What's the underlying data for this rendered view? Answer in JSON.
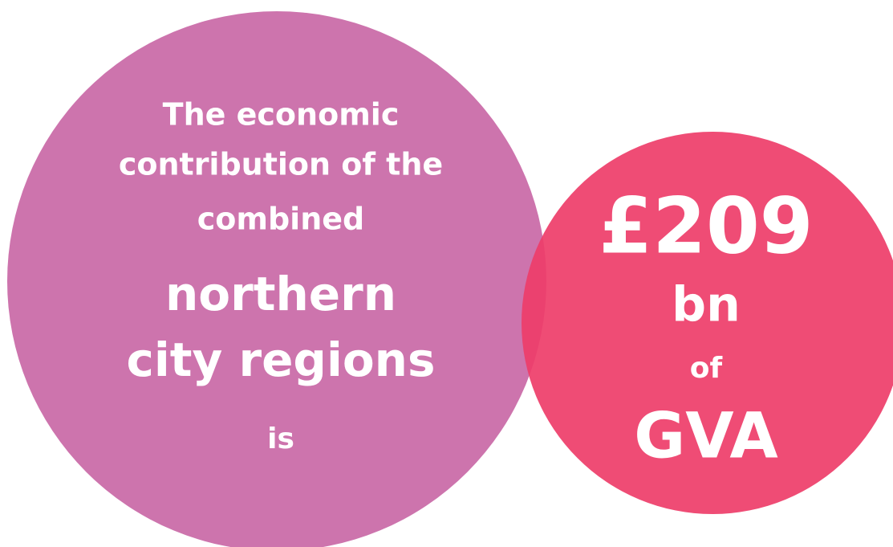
{
  "left_circle": {
    "lines": [
      "The economic",
      "contribution of the",
      "combined",
      "northern",
      "city regions",
      "is"
    ]
  },
  "right_circle": {
    "lines": [
      "£209",
      "bn",
      "of",
      "GVA"
    ]
  }
}
